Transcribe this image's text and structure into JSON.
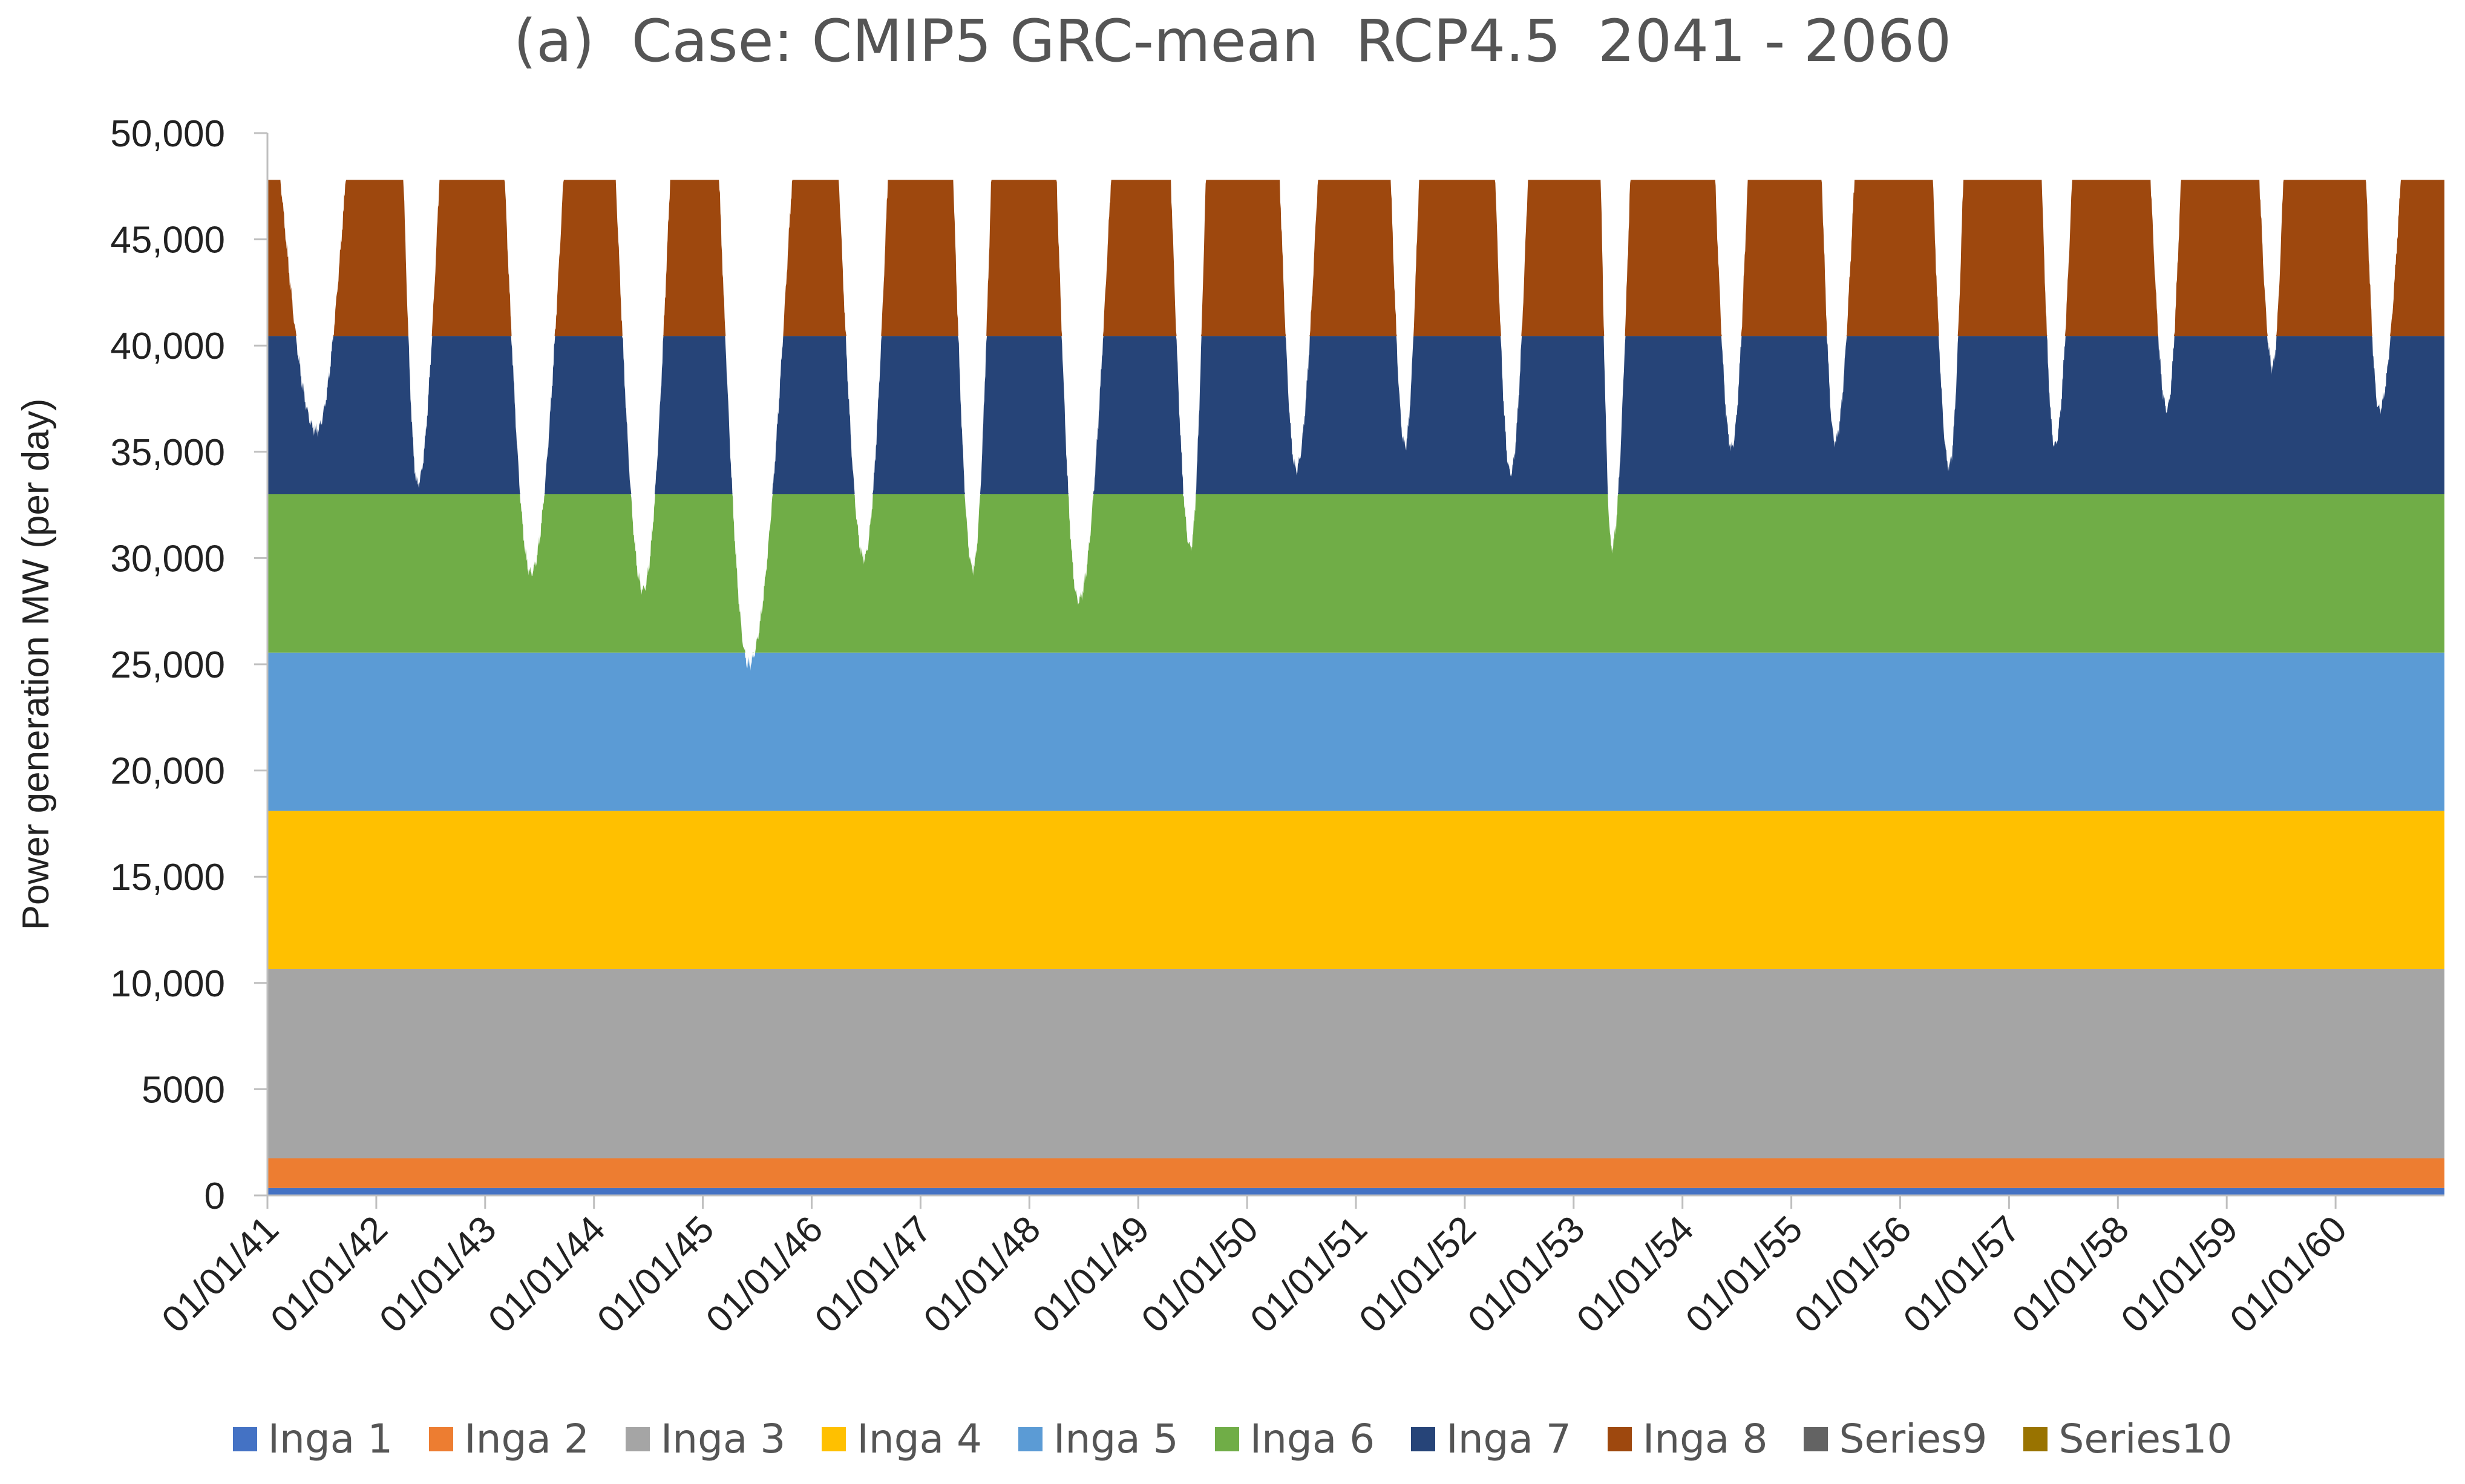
{
  "chart_data": {
    "type": "area",
    "stacked": true,
    "title": "(a)  Case: CMIP5 GRC-mean  RCP4.5  2041 - 2060",
    "ylabel": "Power generation MW (per day)",
    "xlabel": "",
    "ylim": [
      0,
      50000
    ],
    "yticks": [
      {
        "value": 0,
        "label": "0"
      },
      {
        "value": 5000,
        "label": "5000"
      },
      {
        "value": 10000,
        "label": "10,000"
      },
      {
        "value": 15000,
        "label": "15,000"
      },
      {
        "value": 20000,
        "label": "20,000"
      },
      {
        "value": 25000,
        "label": "25,000"
      },
      {
        "value": 30000,
        "label": "30,000"
      },
      {
        "value": 35000,
        "label": "35,000"
      },
      {
        "value": 40000,
        "label": "40,000"
      },
      {
        "value": 45000,
        "label": "45,000"
      },
      {
        "value": 50000,
        "label": "50,000"
      }
    ],
    "xlim": [
      2041,
      2061
    ],
    "xticks": [
      "01/01/41",
      "01/01/42",
      "01/01/43",
      "01/01/44",
      "01/01/45",
      "01/01/46",
      "01/01/47",
      "01/01/48",
      "01/01/49",
      "01/01/50",
      "01/01/51",
      "01/01/52",
      "01/01/53",
      "01/01/54",
      "01/01/55",
      "01/01/56",
      "01/01/57",
      "01/01/58",
      "01/01/59",
      "01/01/60"
    ],
    "legend_position": "bottom",
    "series": [
      {
        "name": "Inga 1",
        "color": "#4472C4",
        "capacity": 350
      },
      {
        "name": "Inga 2",
        "color": "#ED7D31",
        "capacity": 1400
      },
      {
        "name": "Inga 3",
        "color": "#A5A5A5",
        "capacity": 8900
      },
      {
        "name": "Inga 4",
        "color": "#FFC000",
        "capacity": 7450
      },
      {
        "name": "Inga 5",
        "color": "#5B9BD5",
        "capacity": 7450
      },
      {
        "name": "Inga 6",
        "color": "#70AD47",
        "capacity": 7450
      },
      {
        "name": "Inga 7",
        "color": "#264478",
        "capacity": 7450
      },
      {
        "name": "Inga 8",
        "color": "#9E480E",
        "capacity": 7350
      },
      {
        "name": "Series9",
        "color": "#636363",
        "capacity": 0
      },
      {
        "name": "Series10",
        "color": "#997300",
        "capacity": 0
      }
    ],
    "annual_dips": [
      {
        "year": 2041,
        "start": 0.12,
        "min_t": 0.45,
        "end": 0.72,
        "min_total": 36000
      },
      {
        "year": 2042,
        "start": 0.25,
        "min_t": 0.38,
        "end": 0.58,
        "min_total": 33500
      },
      {
        "year": 2043,
        "start": 0.18,
        "min_t": 0.42,
        "end": 0.72,
        "min_total": 29300
      },
      {
        "year": 2044,
        "start": 0.2,
        "min_t": 0.45,
        "end": 0.7,
        "min_total": 28500
      },
      {
        "year": 2045,
        "start": 0.15,
        "min_t": 0.42,
        "end": 0.82,
        "min_total": 25000
      },
      {
        "year": 2046,
        "start": 0.25,
        "min_t": 0.48,
        "end": 0.7,
        "min_total": 30000
      },
      {
        "year": 2047,
        "start": 0.3,
        "min_t": 0.48,
        "end": 0.65,
        "min_total": 29500
      },
      {
        "year": 2048,
        "start": 0.25,
        "min_t": 0.45,
        "end": 0.75,
        "min_total": 28000
      },
      {
        "year": 2049,
        "start": 0.3,
        "min_t": 0.48,
        "end": 0.62,
        "min_total": 30500
      },
      {
        "year": 2050,
        "start": 0.3,
        "min_t": 0.45,
        "end": 0.65,
        "min_total": 34200
      },
      {
        "year": 2051,
        "start": 0.32,
        "min_t": 0.45,
        "end": 0.58,
        "min_total": 35300
      },
      {
        "year": 2052,
        "start": 0.28,
        "min_t": 0.42,
        "end": 0.58,
        "min_total": 34000
      },
      {
        "year": 2053,
        "start": 0.25,
        "min_t": 0.35,
        "end": 0.52,
        "min_total": 30500
      },
      {
        "year": 2054,
        "start": 0.3,
        "min_t": 0.45,
        "end": 0.6,
        "min_total": 35200
      },
      {
        "year": 2055,
        "start": 0.28,
        "min_t": 0.4,
        "end": 0.58,
        "min_total": 35500
      },
      {
        "year": 2056,
        "start": 0.3,
        "min_t": 0.45,
        "end": 0.58,
        "min_total": 34300
      },
      {
        "year": 2057,
        "start": 0.3,
        "min_t": 0.42,
        "end": 0.58,
        "min_total": 35300
      },
      {
        "year": 2058,
        "start": 0.3,
        "min_t": 0.45,
        "end": 0.58,
        "min_total": 37000
      },
      {
        "year": 2059,
        "start": 0.3,
        "min_t": 0.42,
        "end": 0.52,
        "min_total": 39000
      },
      {
        "year": 2060,
        "start": 0.28,
        "min_t": 0.4,
        "end": 0.6,
        "min_total": 37000
      }
    ]
  }
}
